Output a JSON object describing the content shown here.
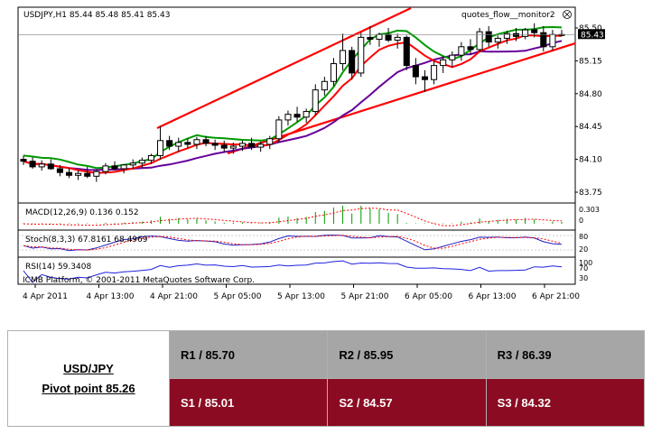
{
  "header": {
    "symbol_line": "USDJPY,H1  85.44 85.48 85.41 85.43",
    "indicator_name": "quotes_flow__monitor2",
    "current_price_tag": "85.43"
  },
  "chart_data": [
    {
      "type": "candlestick",
      "panel": "price",
      "y_ticks": [
        "85.50",
        "85.15",
        "84.80",
        "84.45",
        "84.10",
        "83.75"
      ],
      "ylim": [
        83.7,
        85.68
      ],
      "series_colors": {
        "ma_fast": "#009900",
        "ma_mid": "#ff0000",
        "ma_slow": "#660099",
        "trendline": "#ff0000"
      },
      "candles": [
        [
          84.1,
          84.14,
          84.04,
          84.08
        ],
        [
          84.08,
          84.12,
          84.0,
          84.02
        ],
        [
          84.02,
          84.09,
          83.98,
          84.05
        ],
        [
          84.05,
          84.1,
          83.99,
          84.0
        ],
        [
          84.0,
          84.04,
          83.92,
          83.96
        ],
        [
          83.96,
          84.01,
          83.9,
          83.93
        ],
        [
          83.93,
          83.98,
          83.88,
          83.95
        ],
        [
          83.95,
          84.02,
          83.9,
          83.92
        ],
        [
          83.92,
          83.99,
          83.86,
          83.97
        ],
        [
          83.97,
          84.06,
          83.94,
          84.03
        ],
        [
          84.03,
          84.08,
          83.98,
          84.0
        ],
        [
          84.0,
          84.05,
          83.95,
          84.04
        ],
        [
          84.04,
          84.1,
          84.0,
          84.06
        ],
        [
          84.06,
          84.12,
          84.01,
          84.09
        ],
        [
          84.09,
          84.16,
          84.05,
          84.14
        ],
        [
          84.14,
          84.45,
          84.1,
          84.3
        ],
        [
          84.3,
          84.35,
          84.2,
          84.24
        ],
        [
          84.24,
          84.33,
          84.18,
          84.28
        ],
        [
          84.28,
          84.32,
          84.22,
          84.26
        ],
        [
          84.26,
          84.34,
          84.21,
          84.31
        ],
        [
          84.31,
          84.35,
          84.24,
          84.27
        ],
        [
          84.27,
          84.31,
          84.2,
          84.25
        ],
        [
          84.25,
          84.3,
          84.18,
          84.22
        ],
        [
          84.22,
          84.28,
          84.16,
          84.24
        ],
        [
          84.24,
          84.3,
          84.19,
          84.27
        ],
        [
          84.27,
          84.33,
          84.2,
          84.23
        ],
        [
          84.23,
          84.29,
          84.18,
          84.26
        ],
        [
          84.26,
          84.35,
          84.21,
          84.32
        ],
        [
          84.32,
          84.56,
          84.28,
          84.52
        ],
        [
          84.52,
          84.62,
          84.46,
          84.58
        ],
        [
          84.58,
          84.66,
          84.5,
          84.55
        ],
        [
          84.55,
          84.64,
          84.49,
          84.61
        ],
        [
          84.61,
          84.9,
          84.57,
          84.84
        ],
        [
          84.84,
          84.98,
          84.78,
          84.93
        ],
        [
          84.93,
          85.18,
          84.88,
          85.12
        ],
        [
          85.12,
          85.44,
          85.05,
          85.26
        ],
        [
          85.26,
          85.3,
          84.95,
          85.02
        ],
        [
          85.02,
          85.45,
          84.98,
          85.4
        ],
        [
          85.4,
          85.52,
          85.32,
          85.38
        ],
        [
          85.38,
          85.45,
          85.3,
          85.43
        ],
        [
          85.43,
          85.5,
          85.35,
          85.37
        ],
        [
          85.37,
          85.44,
          85.28,
          85.4
        ],
        [
          85.4,
          85.42,
          85.05,
          85.1
        ],
        [
          85.1,
          85.18,
          84.9,
          84.98
        ],
        [
          84.98,
          85.05,
          84.82,
          84.95
        ],
        [
          84.95,
          85.15,
          84.9,
          85.1
        ],
        [
          85.1,
          85.2,
          85.02,
          85.16
        ],
        [
          85.16,
          85.25,
          85.08,
          85.21
        ],
        [
          85.21,
          85.35,
          85.15,
          85.3
        ],
        [
          85.3,
          85.38,
          85.22,
          85.27
        ],
        [
          85.27,
          85.5,
          85.24,
          85.46
        ],
        [
          85.46,
          85.52,
          85.3,
          85.35
        ],
        [
          85.35,
          85.42,
          85.28,
          85.39
        ],
        [
          85.39,
          85.47,
          85.33,
          85.44
        ],
        [
          85.44,
          85.5,
          85.36,
          85.41
        ],
        [
          85.41,
          85.5,
          85.38,
          85.48
        ],
        [
          85.48,
          85.55,
          85.4,
          85.45
        ],
        [
          85.45,
          85.52,
          85.25,
          85.3
        ],
        [
          85.3,
          85.48,
          85.26,
          85.43
        ],
        [
          85.43,
          85.48,
          85.41,
          85.43
        ]
      ]
    },
    {
      "type": "line",
      "panel": "macd",
      "label": "MACD(12,26,9) 0.136 0.152",
      "y_ticks": [
        "0.303",
        "0"
      ]
    },
    {
      "type": "line",
      "panel": "stochastic",
      "label": "Stoch(8,3,3) 67.8161 68.4969",
      "y_ticks": [
        "80",
        "20"
      ]
    },
    {
      "type": "line",
      "panel": "rsi",
      "label": "RSI(14) 59.3408",
      "y_ticks": [
        "100",
        "70",
        "30"
      ]
    }
  ],
  "footer": {
    "copyright": "ICMB Platform, © 2001-2011 MetaQuotes Software Corp.",
    "x_labels": [
      "4 Apr 2011",
      "4 Apr 13:00",
      "4 Apr 21:00",
      "5 Apr 05:00",
      "5 Apr 13:00",
      "5 Apr 21:00",
      "6 Apr 05:00",
      "6 Apr 13:00",
      "6 Apr 21:00"
    ]
  },
  "pivot_table": {
    "pair": "USD/JPY",
    "pivot_point": "Pivot point 85.26",
    "resistance": [
      "R1 / 85.70",
      "R2 / 85.95",
      "R3 / 86.39"
    ],
    "support": [
      "S1 / 85.01",
      "S2 / 84.57",
      "S3 / 84.32"
    ]
  }
}
